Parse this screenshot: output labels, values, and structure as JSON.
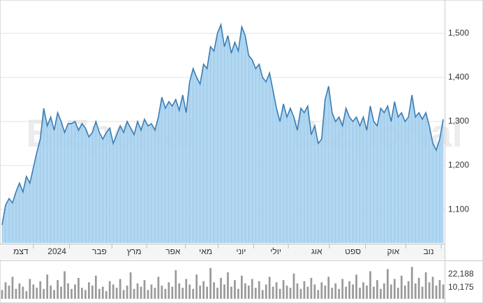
{
  "watermark": "BIZportal",
  "chart_data": [
    {
      "type": "area",
      "color": "#3a7db4",
      "fill": "#aad3ef",
      "values": [
        1065,
        1110,
        1125,
        1115,
        1140,
        1160,
        1140,
        1175,
        1160,
        1195,
        1230,
        1260,
        1330,
        1290,
        1310,
        1280,
        1320,
        1300,
        1275,
        1295,
        1295,
        1300,
        1280,
        1295,
        1285,
        1265,
        1275,
        1300,
        1275,
        1260,
        1275,
        1285,
        1250,
        1270,
        1290,
        1275,
        1300,
        1285,
        1270,
        1300,
        1280,
        1305,
        1290,
        1295,
        1280,
        1310,
        1355,
        1330,
        1345,
        1335,
        1350,
        1325,
        1360,
        1320,
        1390,
        1420,
        1400,
        1385,
        1430,
        1420,
        1470,
        1460,
        1500,
        1520,
        1470,
        1495,
        1455,
        1480,
        1460,
        1515,
        1495,
        1450,
        1440,
        1420,
        1430,
        1400,
        1390,
        1410,
        1370,
        1330,
        1300,
        1340,
        1310,
        1330,
        1310,
        1280,
        1330,
        1320,
        1335,
        1270,
        1290,
        1250,
        1260,
        1350,
        1380,
        1320,
        1300,
        1310,
        1290,
        1330,
        1310,
        1300,
        1310,
        1290,
        1310,
        1280,
        1335,
        1300,
        1290,
        1330,
        1320,
        1335,
        1300,
        1345,
        1310,
        1320,
        1300,
        1310,
        1360,
        1310,
        1320,
        1305,
        1320,
        1290,
        1250,
        1235,
        1260,
        1305
      ],
      "xlim": [
        0,
        127
      ],
      "xticks": [
        {
          "value": 5.4,
          "label": "דצמ"
        },
        {
          "value": 15.8,
          "label": "2024"
        },
        {
          "value": 28,
          "label": "פבר"
        },
        {
          "value": 38,
          "label": "מרץ"
        },
        {
          "value": 49.2,
          "label": "אפר"
        },
        {
          "value": 58.6,
          "label": "מאי"
        },
        {
          "value": 68.8,
          "label": "יוני"
        },
        {
          "value": 78.8,
          "label": "יולי"
        },
        {
          "value": 90.6,
          "label": "אוג"
        },
        {
          "value": 101,
          "label": "ספט"
        },
        {
          "value": 112.6,
          "label": "אוק"
        },
        {
          "value": 122.8,
          "label": "נוב"
        }
      ],
      "ylim": [
        1024,
        1568
      ],
      "yticks": [
        {
          "value": 1100,
          "label": "1,100"
        },
        {
          "value": 1200,
          "label": "1,200"
        },
        {
          "value": 1300,
          "label": "1,300"
        },
        {
          "value": 1400,
          "label": "1,400"
        },
        {
          "value": 1500,
          "label": "1,500"
        }
      ],
      "grid": true
    },
    {
      "type": "bar",
      "color": "#9a9a9a",
      "values": [
        8000,
        15000,
        12000,
        20000,
        9000,
        14000,
        11000,
        7000,
        18000,
        13000,
        10000,
        16000,
        9000,
        22000,
        12000,
        8000,
        17000,
        11000,
        25000,
        14000,
        9000,
        13000,
        19000,
        10000,
        8000,
        15000,
        12000,
        21000,
        9000,
        11000,
        7000,
        16000,
        13000,
        10000,
        18000,
        8000,
        12000,
        24000,
        9000,
        14000,
        11000,
        17000,
        8000,
        13000,
        10000,
        20000,
        12000,
        9000,
        15000,
        11000,
        26000,
        14000,
        10000,
        18000,
        13000,
        9000,
        22000,
        12000,
        16000,
        11000,
        28000,
        15000,
        10000,
        19000,
        13000,
        24000,
        11000,
        17000,
        9000,
        21000,
        14000,
        12000,
        18000,
        10000,
        16000,
        8000,
        13000,
        20000,
        11000,
        15000,
        9000,
        17000,
        12000,
        10000,
        23000,
        14000,
        9000,
        16000,
        11000,
        19000,
        13000,
        8000,
        15000,
        12000,
        20000,
        10000,
        14000,
        9000,
        18000,
        11000,
        16000,
        13000,
        22000,
        10000,
        15000,
        12000,
        25000,
        11000,
        17000,
        9000,
        14000,
        27000,
        13000,
        18000,
        10000,
        21000,
        12000,
        16000,
        29000,
        14000,
        19000,
        11000,
        24000,
        15000,
        20000,
        12000,
        17000,
        13000
      ],
      "ylim": [
        0,
        33564
      ],
      "yticks": [
        {
          "value": 10175,
          "label": "10,175"
        },
        {
          "value": 22188,
          "label": "22,188"
        }
      ]
    }
  ]
}
